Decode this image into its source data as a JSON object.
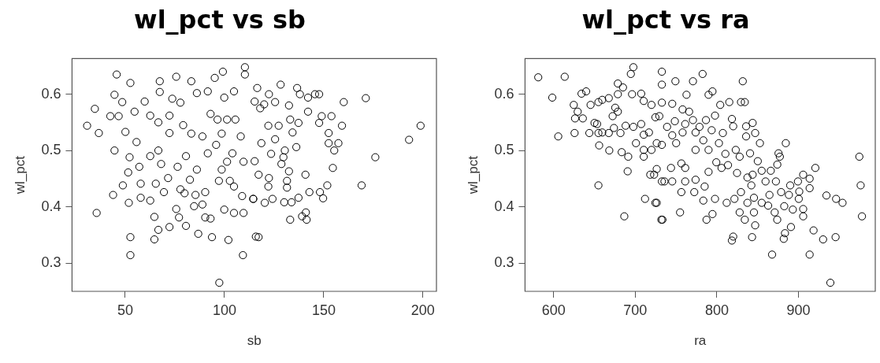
{
  "chart_data": [
    {
      "type": "scatter",
      "title": "wl_pct vs sb",
      "xlabel": "sb",
      "ylabel": "wl_pct",
      "xlim": [
        23.2,
        206.8
      ],
      "ylim": [
        0.2497,
        0.6633
      ],
      "xticks": [
        50,
        100,
        150,
        200
      ],
      "yticks": [
        0.3,
        0.4,
        0.5,
        0.6
      ],
      "grid": false,
      "marker": "circle",
      "series": [
        {
          "color": "#000000",
          "x": [
            45.7,
            52.6,
            34.7,
            30.8,
            36.7,
            44.6,
            35.6,
            43.9,
            51.8,
            52.6,
            52.6,
            44.6,
            42.5,
            46.7,
            48.5,
            54.7,
            50.1,
            55.7,
            52.2,
            51.5,
            48.8,
            57.8,
            57.8,
            64.7,
            64.7,
            66.7,
            72.3,
            80.6,
            86.8,
            93.7,
            102,
            109.3,
            97.4,
            67.4,
            75.7,
            83.3,
            86.1,
            99.2,
            95.1,
            110.3,
            110.3,
            104.8,
            91.6,
            99.9,
            59.8,
            67.4,
            73.7,
            77.8,
            62.6,
            66.7,
            72.3,
            79.2,
            72.3,
            83.3,
            88.9,
            96.5,
            93,
            101.3,
            105.5,
            98.6,
            108.2,
            95.8,
            91.6,
            104,
            66.7,
            62.6,
            57.1,
            68.1,
            76.4,
            80.6,
            86.1,
            82.6,
            71.6,
            65.4,
            69.5,
            77.8,
            79.9,
            85.4,
            90.3,
            97.2,
            101.3,
            109.6,
            104.8,
            108.9,
            114.5,
            102.7,
            98.6,
            62.6,
            75.7,
            77.1,
            84.7,
            88.9,
            90.3,
            93,
            99.9,
            104.8,
            109.6,
            115.8,
            198.8,
            193,
            176,
            171.2,
            160.1,
            169.1,
            128.3,
            116.5,
            122.4,
            136.6,
            138,
            145.6,
            147.7,
            142.1,
            125.5,
            132.5,
            142.1,
            149,
            153.9,
            159.2,
            152.5,
            147.7,
            137.3,
            133.1,
            127.3,
            122.1,
            134.3,
            125.5,
            118.6,
            157.4,
            152.5,
            155.3,
            130.4,
            123.5,
            136.2,
            129.7,
            128.7,
            132.5,
            140.8,
            154.6,
            115.2,
            117.2,
            122.4,
            131.5,
            131.5,
            122.1,
            151.8,
            142.8,
            148.1,
            149.7,
            137.3,
            133.8,
            130.1,
            124.2,
            120.3,
            114.5,
            141,
            139.1,
            141.4,
            133.1,
            117.2,
            118,
            115.2,
            120
          ],
          "values": [
            0.635,
            0.62,
            0.574,
            0.544,
            0.531,
            0.5,
            0.389,
            0.421,
            0.407,
            0.346,
            0.314,
            0.599,
            0.561,
            0.561,
            0.586,
            0.569,
            0.533,
            0.515,
            0.488,
            0.461,
            0.438,
            0.441,
            0.416,
            0.382,
            0.342,
            0.359,
            0.364,
            0.366,
            0.352,
            0.346,
            0.341,
            0.314,
            0.265,
            0.623,
            0.631,
            0.623,
            0.602,
            0.64,
            0.629,
            0.648,
            0.635,
            0.605,
            0.605,
            0.594,
            0.587,
            0.604,
            0.592,
            0.585,
            0.562,
            0.55,
            0.562,
            0.545,
            0.531,
            0.53,
            0.525,
            0.555,
            0.565,
            0.555,
            0.555,
            0.53,
            0.525,
            0.51,
            0.495,
            0.495,
            0.5,
            0.49,
            0.471,
            0.476,
            0.471,
            0.49,
            0.466,
            0.448,
            0.451,
            0.441,
            0.426,
            0.431,
            0.424,
            0.421,
            0.426,
            0.446,
            0.48,
            0.48,
            0.436,
            0.419,
            0.414,
            0.446,
            0.466,
            0.411,
            0.396,
            0.381,
            0.401,
            0.404,
            0.381,
            0.379,
            0.395,
            0.389,
            0.389,
            0.347,
            0.544,
            0.519,
            0.488,
            0.593,
            0.586,
            0.438,
            0.617,
            0.611,
            0.6,
            0.611,
            0.6,
            0.6,
            0.6,
            0.594,
            0.586,
            0.58,
            0.569,
            0.561,
            0.561,
            0.544,
            0.531,
            0.549,
            0.549,
            0.555,
            0.544,
            0.544,
            0.532,
            0.52,
            0.513,
            0.513,
            0.513,
            0.5,
            0.5,
            0.494,
            0.506,
            0.488,
            0.476,
            0.463,
            0.457,
            0.469,
            0.481,
            0.457,
            0.451,
            0.446,
            0.434,
            0.436,
            0.438,
            0.426,
            0.426,
            0.415,
            0.416,
            0.408,
            0.408,
            0.414,
            0.407,
            0.414,
            0.39,
            0.383,
            0.377,
            0.377,
            0.346,
            0.575,
            0.587,
            0.582
          ]
        }
      ]
    },
    {
      "type": "scatter",
      "title": "wl_pct vs ra",
      "xlabel": "ra",
      "ylabel": "wl_pct",
      "xlim": [
        565,
        994
      ],
      "ylim": [
        0.2497,
        0.6633
      ],
      "xticks": [
        600,
        700,
        800,
        900
      ],
      "yticks": [
        0.3,
        0.4,
        0.5,
        0.6
      ],
      "grid": false,
      "marker": "circle",
      "series": [
        {
          "color": "#000000",
          "x": [
            581.2,
            613.6,
            598.4,
            605.7,
            625.7,
            624.7,
            629.5,
            626.3,
            635.8,
            634.2,
            639.9,
            645.3,
            654.9,
            659.6,
            667.6,
            650.1,
            654.9,
            643.8,
            667.6,
            681.9,
            655.8,
            668.2,
            683.4,
            691.4,
            690.7,
            654.9,
            686.6,
            712,
            724.7,
            732,
            688.2,
            697.7,
            678.7,
            694.6,
            697.7,
            685,
            678.7,
            696.1,
            707.3,
            710.4,
            719.9,
            724.7,
            729.5,
            678.7,
            672.3,
            675.5,
            707.3,
            716.8,
            700.9,
            710.4,
            719.9,
            710.4,
            726.3,
            718.4,
            723.1,
            726.3,
            732.6,
            659.6,
            673.9,
            653.3,
            710.4,
            732.6,
            732.6,
            749.2,
            770.7,
            782.5,
            831.7,
            794.6,
            789.8,
            762.8,
            804.1,
            815.2,
            829.5,
            834.2,
            745.3,
            732.6,
            758,
            766,
            797.7,
            786.6,
            818.4,
            820,
            835.8,
            843.8,
            846.9,
            835.8,
            807.3,
            793.6,
            778.7,
            770.7,
            761.2,
            748.5,
            739,
            745.3,
            758,
            773.9,
            783.4,
            802.5,
            852.7,
            884.4,
            750.1,
            732.6,
            773.9,
            789.8,
            810.4,
            823.1,
            827.9,
            840.6,
            850.1,
            875.5,
            877.1,
            874,
            866,
            854.9,
            843.8,
            837.4,
            824.7,
            813.6,
            805.7,
            799.3,
            789.8,
            785,
            773.9,
            761.2,
            756.5,
            743.8,
            735.8,
            745.3,
            756.5,
            761.2,
            772.3,
            783.4,
            797.7,
            812,
            821.5,
            829.5,
            842.2,
            845.4,
            837.4,
            854.9,
            862.8,
            859.6,
            864.4,
            872.3,
            878.7,
            888.2,
            889.8,
            899.3,
            900.9,
            905.7,
            913.6,
            913.6,
            920.6,
            900.3,
            882.5,
            893,
            905.7,
            905.7,
            827.9,
            834.2,
            845.4,
            870.8,
            873.9,
            846.9,
            843.1,
            820,
            818.4,
            881.9,
            890.7,
            883.4,
            918.4,
            930.1,
            945.4,
            934.2,
            946,
            953.9,
            974.5,
            976.1,
            977.7,
            867.6,
            913.6,
            939,
            726.3,
            733.3,
            754.9,
            787.3,
            794.6
          ],
          "values": [
            0.63,
            0.631,
            0.594,
            0.525,
            0.531,
            0.581,
            0.569,
            0.557,
            0.557,
            0.601,
            0.605,
            0.581,
            0.586,
            0.59,
            0.593,
            0.549,
            0.531,
            0.531,
            0.531,
            0.531,
            0.509,
            0.5,
            0.497,
            0.489,
            0.463,
            0.438,
            0.383,
            0.414,
            0.407,
            0.377,
            0.544,
            0.542,
            0.619,
            0.636,
            0.648,
            0.612,
            0.6,
            0.6,
            0.601,
            0.588,
            0.581,
            0.559,
            0.561,
            0.569,
            0.561,
            0.576,
            0.547,
            0.532,
            0.513,
            0.501,
            0.501,
            0.489,
            0.513,
            0.457,
            0.457,
            0.467,
            0.445,
            0.532,
            0.54,
            0.547,
            0.528,
            0.64,
            0.617,
            0.623,
            0.623,
            0.636,
            0.623,
            0.605,
            0.599,
            0.599,
            0.581,
            0.586,
            0.586,
            0.586,
            0.583,
            0.585,
            0.573,
            0.569,
            0.562,
            0.554,
            0.556,
            0.543,
            0.543,
            0.549,
            0.531,
            0.525,
            0.531,
            0.536,
            0.542,
            0.554,
            0.547,
            0.552,
            0.542,
            0.527,
            0.532,
            0.532,
            0.518,
            0.513,
            0.513,
            0.513,
            0.513,
            0.51,
            0.501,
            0.501,
            0.494,
            0.501,
            0.489,
            0.495,
            0.481,
            0.495,
            0.489,
            0.475,
            0.464,
            0.464,
            0.457,
            0.452,
            0.46,
            0.474,
            0.469,
            0.479,
            0.462,
            0.436,
            0.448,
            0.469,
            0.477,
            0.469,
            0.445,
            0.445,
            0.426,
            0.445,
            0.426,
            0.411,
            0.414,
            0.407,
            0.414,
            0.426,
            0.438,
            0.416,
            0.407,
            0.407,
            0.402,
            0.445,
            0.421,
            0.445,
            0.426,
            0.421,
            0.438,
            0.445,
            0.427,
            0.457,
            0.45,
            0.433,
            0.469,
            0.414,
            0.401,
            0.395,
            0.383,
            0.396,
            0.39,
            0.377,
            0.39,
            0.39,
            0.377,
            0.367,
            0.346,
            0.347,
            0.34,
            0.343,
            0.364,
            0.353,
            0.358,
            0.342,
            0.346,
            0.42,
            0.414,
            0.407,
            0.489,
            0.438,
            0.383,
            0.315,
            0.315,
            0.265,
            0.407,
            0.377,
            0.39,
            0.377,
            0.387
          ]
        }
      ]
    }
  ]
}
